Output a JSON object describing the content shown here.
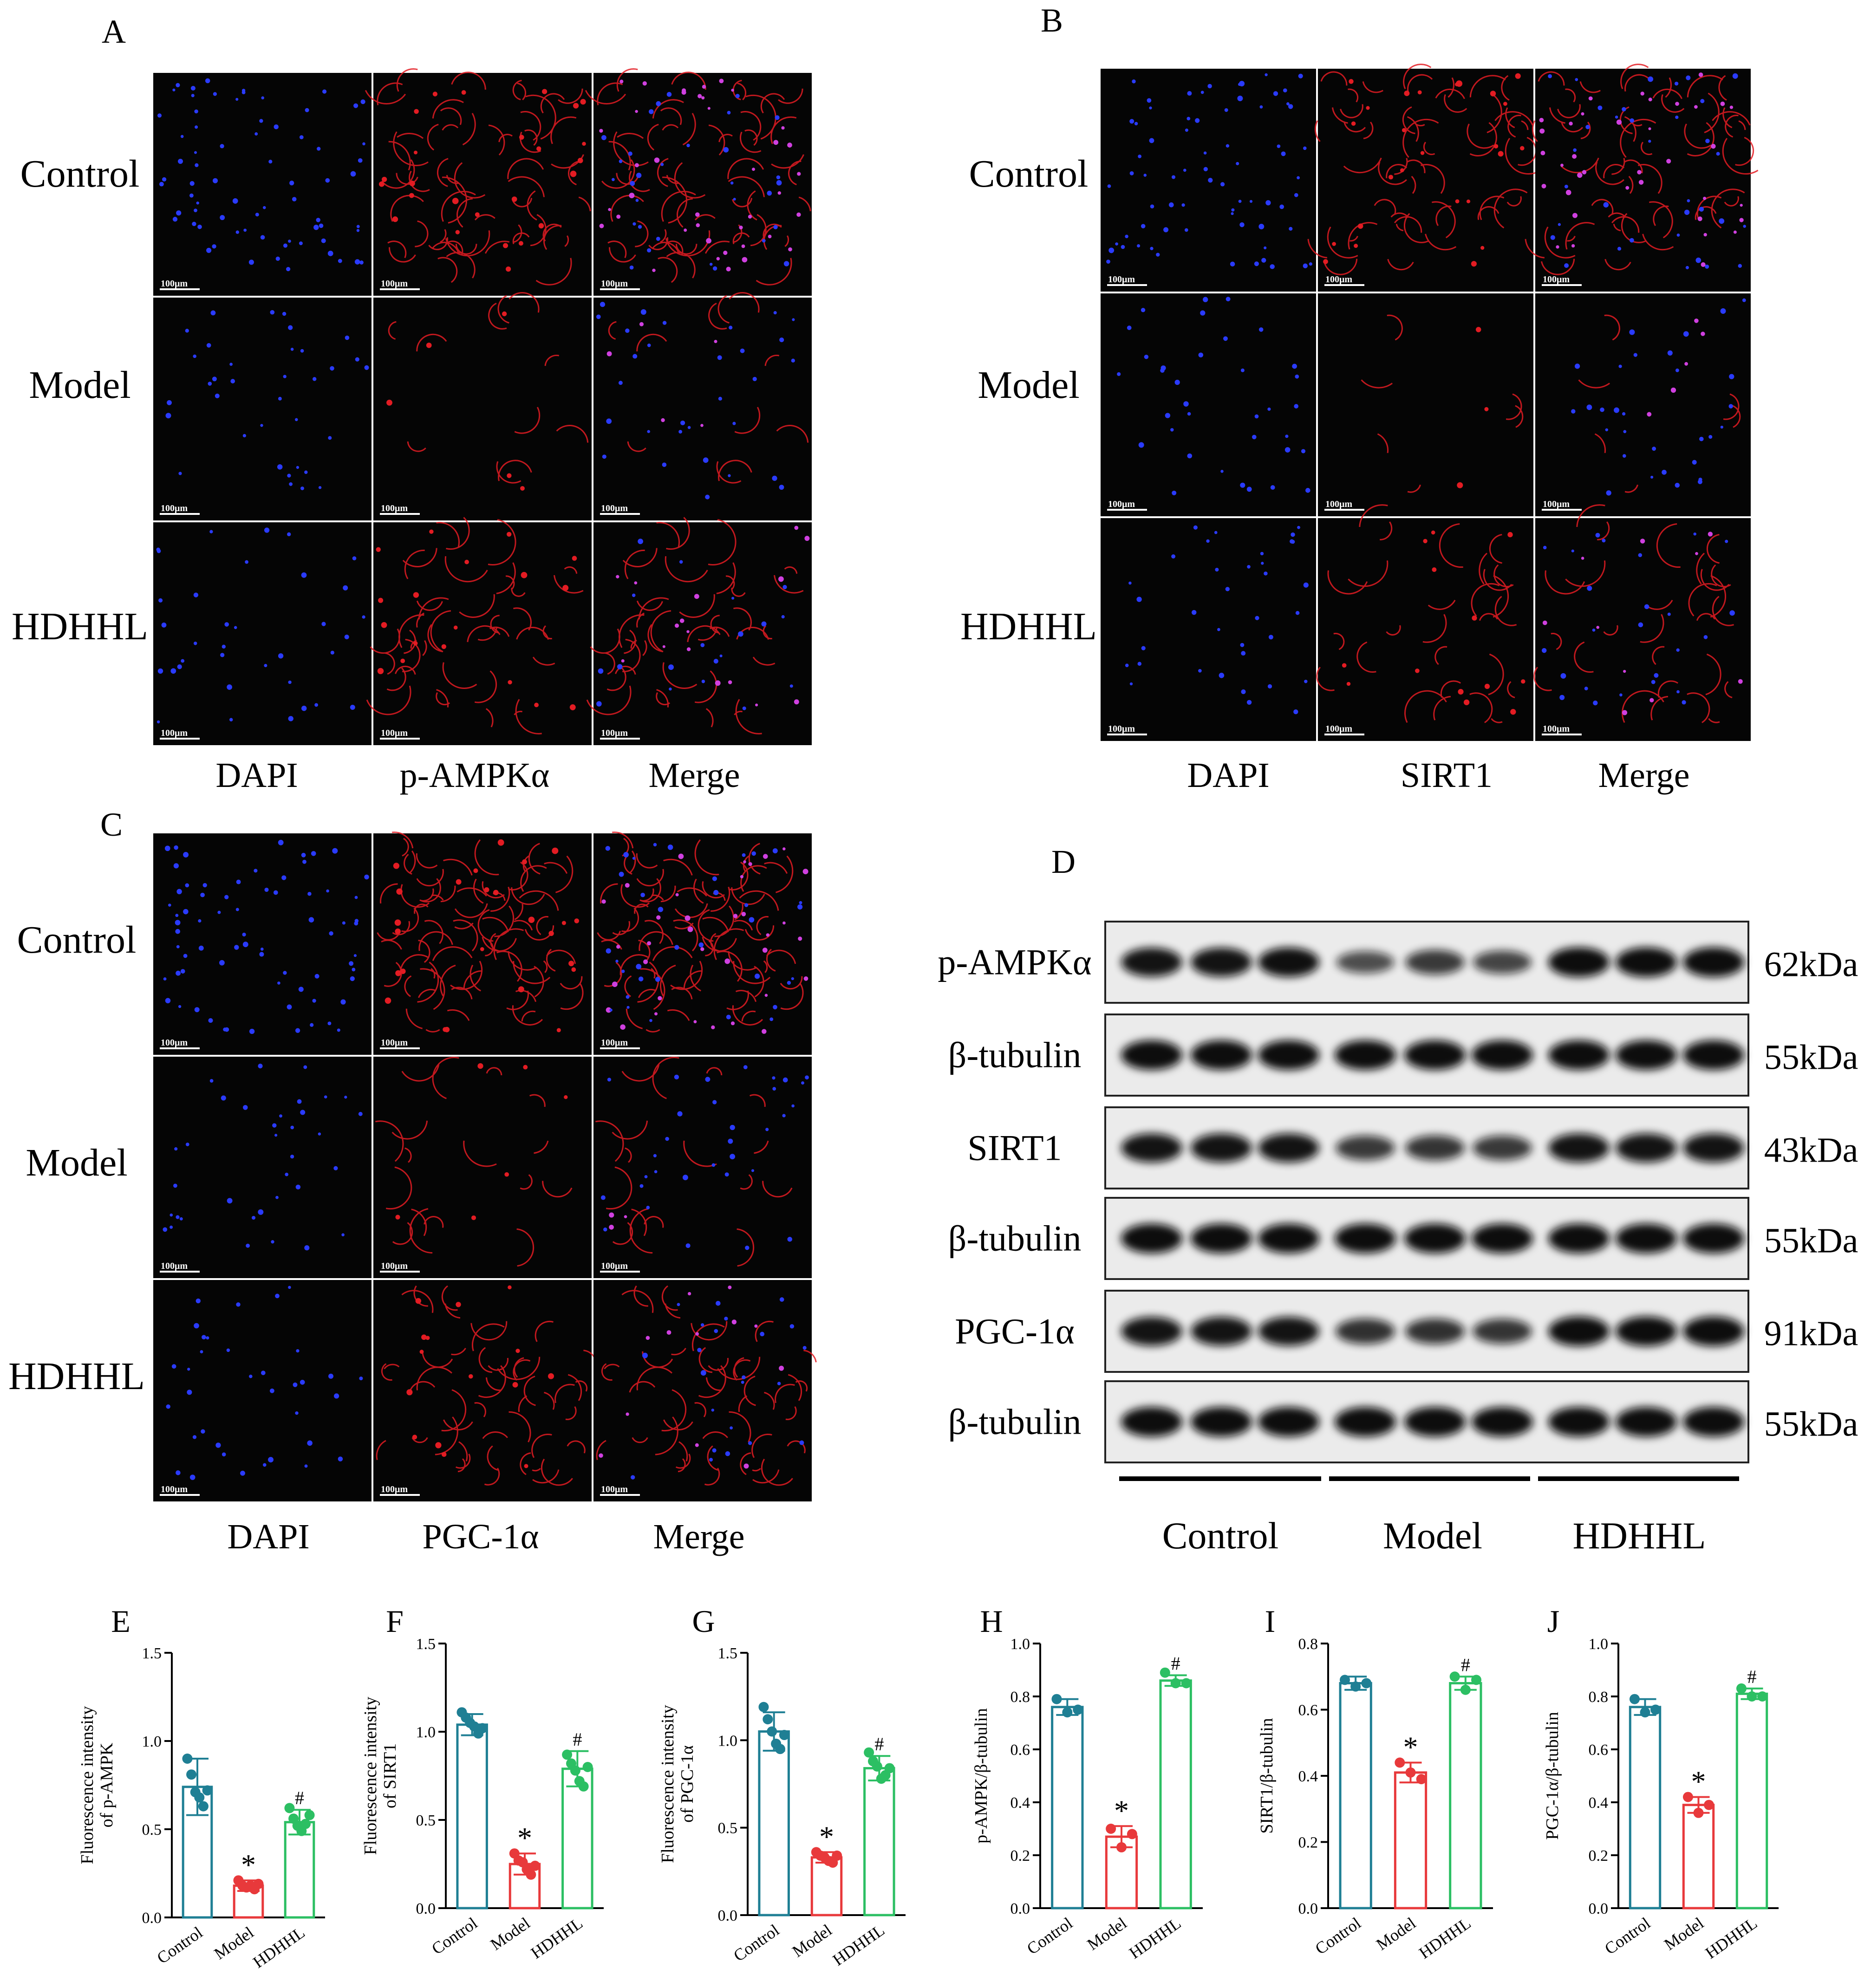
{
  "colors": {
    "control": "#1f7f94",
    "model": "#e8393b",
    "hdhhl": "#2cbf63",
    "dapi": "#2a3bff",
    "stain": "#e31c23",
    "merge": "#d040e0",
    "image_bg": "#050505",
    "blot_bg": "#ebebeb",
    "band": "#111111"
  },
  "icons": {
    "scale_bar": "white-line",
    "point": "circle",
    "error_bar": "capped-line",
    "significance": "asterisk-and-hash"
  },
  "panels": {
    "A": {
      "label": "A",
      "rows": [
        "Control",
        "Model",
        "HDHHL"
      ],
      "columns": [
        "DAPI",
        "p-AMPKα",
        "Merge"
      ],
      "scale": "100μm"
    },
    "B": {
      "label": "B",
      "rows": [
        "Control",
        "Model",
        "HDHHL"
      ],
      "columns": [
        "DAPI",
        "SIRT1",
        "Merge"
      ],
      "scale": "100μm"
    },
    "C": {
      "label": "C",
      "rows": [
        "Control",
        "Model",
        "HDHHL"
      ],
      "columns": [
        "DAPI",
        "PGC-1α",
        "Merge"
      ],
      "scale": "100μm"
    }
  },
  "western": {
    "label": "D",
    "rows": [
      {
        "protein": "p-AMPKα",
        "size": "62kDa",
        "bands": [
          0.95,
          0.95,
          0.98,
          0.55,
          0.7,
          0.62,
          1.0,
          1.0,
          1.0
        ]
      },
      {
        "protein": "β-tubulin",
        "size": "55kDa",
        "bands": [
          1.0,
          1.0,
          1.0,
          1.0,
          1.0,
          1.0,
          1.0,
          1.0,
          1.0
        ]
      },
      {
        "protein": "SIRT1",
        "size": "43kDa",
        "bands": [
          0.95,
          0.95,
          0.95,
          0.7,
          0.72,
          0.7,
          0.95,
          0.95,
          0.95
        ]
      },
      {
        "protein": "β-tubulin",
        "size": "55kDa",
        "bands": [
          1.0,
          1.0,
          1.0,
          1.0,
          1.0,
          1.0,
          1.0,
          1.0,
          1.0
        ]
      },
      {
        "protein": "PGC-1α",
        "size": "91kDa",
        "bands": [
          0.95,
          0.95,
          0.95,
          0.75,
          0.75,
          0.72,
          1.0,
          1.0,
          1.0
        ]
      },
      {
        "protein": "β-tubulin",
        "size": "55kDa",
        "bands": [
          1.0,
          1.0,
          1.0,
          1.0,
          1.0,
          1.0,
          1.0,
          1.0,
          1.0
        ]
      }
    ],
    "groups": [
      "Control",
      "Model",
      "HDHHL"
    ]
  },
  "chart_data": [
    {
      "panel": "E",
      "type": "bar",
      "categories": [
        "Control",
        "Model",
        "HDHHL"
      ],
      "ylabel": [
        "Fluorescence intensity",
        "of p-AMPK"
      ],
      "ylim": [
        0,
        1.5
      ],
      "yticks": [
        "0.0",
        "0.5",
        "1.0",
        "1.5"
      ],
      "values": [
        0.74,
        0.18,
        0.54
      ],
      "errors": [
        0.16,
        0.03,
        0.07
      ],
      "points": [
        [
          0.9,
          0.81,
          0.71,
          0.68,
          0.63,
          0.72
        ],
        [
          0.21,
          0.18,
          0.17,
          0.18,
          0.16,
          0.19
        ],
        [
          0.62,
          0.56,
          0.52,
          0.49,
          0.53,
          0.58
        ]
      ],
      "marks": [
        "",
        "*",
        "#"
      ]
    },
    {
      "panel": "F",
      "type": "bar",
      "categories": [
        "Control",
        "Model",
        "HDHHL"
      ],
      "ylabel": [
        "Fluorescence intensity",
        "of SIRT1"
      ],
      "ylim": [
        0,
        1.5
      ],
      "yticks": [
        "0.0",
        "0.5",
        "1.0",
        "1.5"
      ],
      "values": [
        1.04,
        0.25,
        0.79
      ],
      "errors": [
        0.06,
        0.06,
        0.1
      ],
      "points": [
        [
          1.11,
          1.08,
          1.05,
          1.03,
          0.99,
          1.02
        ],
        [
          0.31,
          0.27,
          0.26,
          0.22,
          0.19,
          0.24
        ],
        [
          0.87,
          0.82,
          0.78,
          0.72,
          0.69,
          0.8
        ]
      ],
      "marks": [
        "",
        "*",
        "#"
      ]
    },
    {
      "panel": "G",
      "type": "bar",
      "categories": [
        "Control",
        "Model",
        "HDHHL"
      ],
      "ylabel": [
        "Fluorescence intensity",
        "of PGC-1α"
      ],
      "ylim": [
        0,
        1.5
      ],
      "yticks": [
        "0.0",
        "0.5",
        "1.0",
        "1.5"
      ],
      "values": [
        1.05,
        0.33,
        0.84
      ],
      "errors": [
        0.11,
        0.03,
        0.07
      ],
      "points": [
        [
          1.19,
          1.12,
          1.05,
          0.98,
          0.95,
          1.03
        ],
        [
          0.36,
          0.34,
          0.33,
          0.31,
          0.3,
          0.34
        ],
        [
          0.93,
          0.88,
          0.85,
          0.78,
          0.8,
          0.84
        ]
      ],
      "marks": [
        "",
        "*",
        "#"
      ]
    },
    {
      "panel": "H",
      "type": "bar",
      "categories": [
        "Control",
        "Model",
        "HDHHL"
      ],
      "ylabel": [
        "p-AMPK/β-tubulin"
      ],
      "ylim": [
        0,
        1.0
      ],
      "yticks": [
        "0.0",
        "0.2",
        "0.4",
        "0.6",
        "0.8",
        "1.0"
      ],
      "values": [
        0.76,
        0.27,
        0.86
      ],
      "errors": [
        0.03,
        0.04,
        0.02
      ],
      "points": [
        [
          0.79,
          0.74,
          0.75
        ],
        [
          0.3,
          0.23,
          0.28
        ],
        [
          0.89,
          0.85,
          0.85
        ]
      ],
      "marks": [
        "",
        "*",
        "#"
      ]
    },
    {
      "panel": "I",
      "type": "bar",
      "categories": [
        "Control",
        "Model",
        "HDHHL"
      ],
      "ylabel": [
        "SIRT1/β-tubulin"
      ],
      "ylim": [
        0,
        0.8
      ],
      "yticks": [
        "0.0",
        "0.2",
        "0.4",
        "0.6",
        "0.8"
      ],
      "values": [
        0.68,
        0.41,
        0.68
      ],
      "errors": [
        0.02,
        0.03,
        0.02
      ],
      "points": [
        [
          0.69,
          0.67,
          0.68
        ],
        [
          0.44,
          0.41,
          0.39
        ],
        [
          0.7,
          0.66,
          0.69
        ]
      ],
      "marks": [
        "",
        "*",
        "#"
      ]
    },
    {
      "panel": "J",
      "type": "bar",
      "categories": [
        "Control",
        "Model",
        "HDHHL"
      ],
      "ylabel": [
        "PGC-1α/β-tubulin"
      ],
      "ylim": [
        0,
        1.0
      ],
      "yticks": [
        "0.0",
        "0.2",
        "0.4",
        "0.6",
        "0.8",
        "1.0"
      ],
      "values": [
        0.76,
        0.39,
        0.81
      ],
      "errors": [
        0.03,
        0.03,
        0.02
      ],
      "points": [
        [
          0.79,
          0.74,
          0.75
        ],
        [
          0.42,
          0.36,
          0.39
        ],
        [
          0.83,
          0.8,
          0.8
        ]
      ],
      "marks": [
        "",
        "*",
        "#"
      ]
    }
  ]
}
